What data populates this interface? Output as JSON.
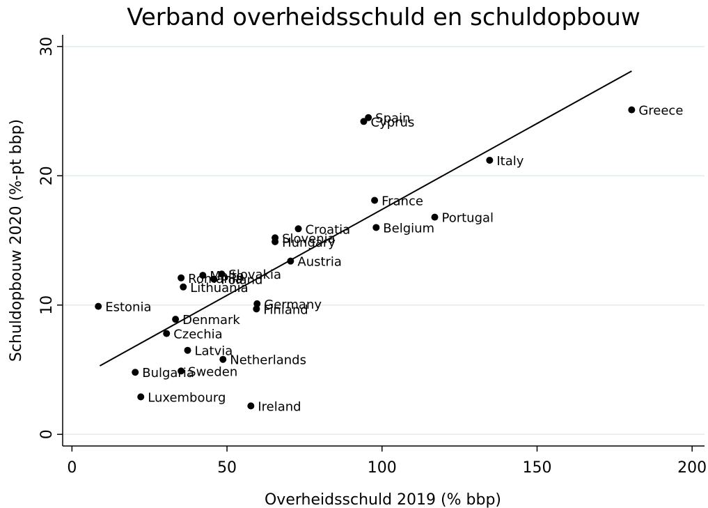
{
  "chart_data": {
    "type": "scatter",
    "title": "Verband overheidsschuld en schuldopbouw",
    "xlabel": "Overheidsschuld 2019 (% bbp)",
    "ylabel": "Schuldopbouw 2020 (%-pt bbp)",
    "labels": [
      "Greece",
      "Italy",
      "Spain",
      "Cyprus",
      "France",
      "Portugal",
      "Belgium",
      "Croatia",
      "Slovenia",
      "Hungary",
      "Austria",
      "Malta",
      "Slovakia",
      "Poland",
      "Romania",
      "Lithuania",
      "Germany",
      "Finland",
      "Estonia",
      "Denmark",
      "Czechia",
      "Latvia",
      "Netherlands",
      "Bulgaria",
      "Sweden",
      "Luxembourg",
      "Ireland"
    ],
    "x": [
      180.5,
      134.7,
      95.6,
      94.1,
      97.6,
      117.0,
      98.1,
      73.0,
      65.5,
      65.5,
      70.5,
      42.2,
      48.3,
      45.8,
      35.2,
      35.9,
      59.7,
      59.5,
      8.5,
      33.4,
      30.5,
      37.3,
      48.7,
      20.4,
      35.2,
      22.2,
      57.7
    ],
    "y": [
      25.1,
      21.2,
      24.5,
      24.2,
      18.1,
      16.8,
      16.0,
      15.9,
      15.2,
      14.9,
      13.4,
      12.3,
      12.4,
      12.0,
      12.1,
      11.4,
      10.1,
      9.7,
      9.9,
      8.9,
      7.8,
      6.5,
      5.8,
      4.8,
      4.9,
      2.9,
      2.2
    ],
    "color": "#000000",
    "fit_line": {
      "x": [
        9.0,
        180.5
      ],
      "y": [
        5.3,
        28.1
      ]
    },
    "xlim": [
      -3,
      204
    ],
    "ylim": [
      -0.9,
      30.9
    ],
    "xticks": [
      0,
      50,
      100,
      150,
      200
    ],
    "yticks": [
      0,
      10,
      20,
      30
    ],
    "grid": true
  }
}
